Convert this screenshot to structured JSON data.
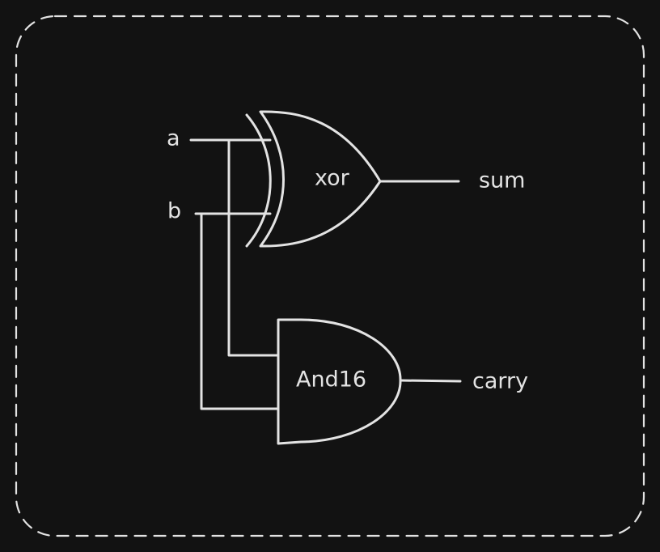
{
  "diagram": {
    "inputs": {
      "a": "a",
      "b": "b"
    },
    "gates": {
      "xor": "xor",
      "and": "And16"
    },
    "outputs": {
      "sum": "sum",
      "carry": "carry"
    }
  }
}
